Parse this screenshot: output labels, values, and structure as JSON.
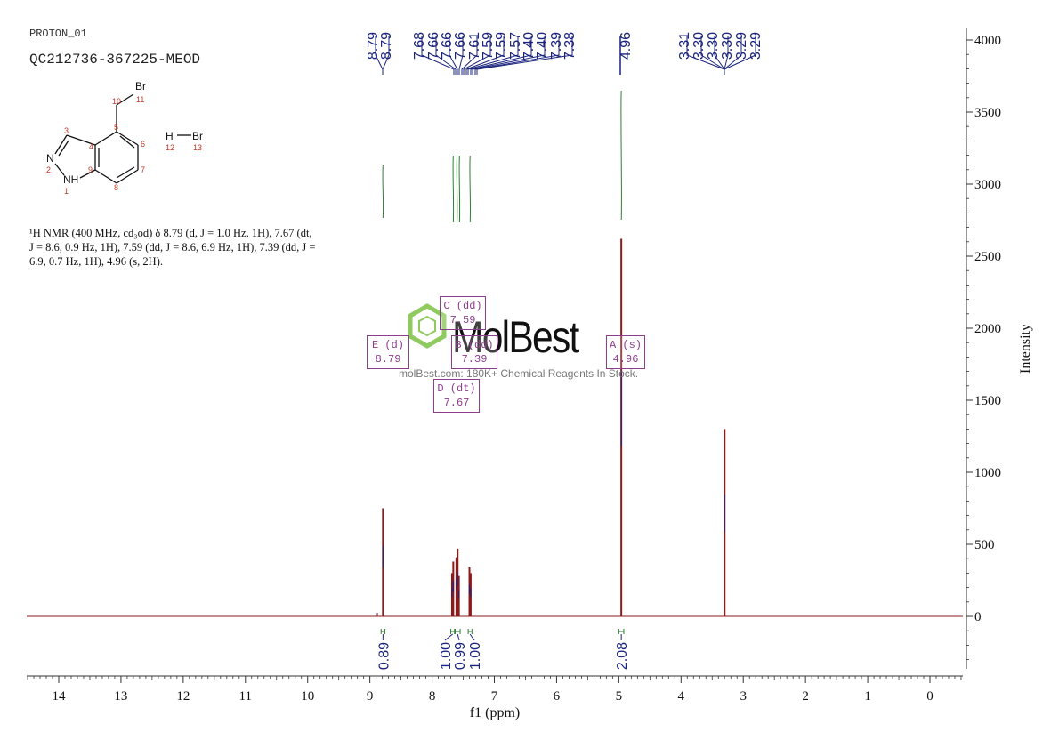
{
  "header": {
    "title": "PROTON_01",
    "sample": "QC212736-367225-MEOD"
  },
  "structure": {
    "atoms": [
      {
        "label": "Br",
        "num": "11"
      },
      {
        "label": "N",
        "num": "2"
      },
      {
        "label": "NH",
        "num": "1"
      },
      {
        "label": "H",
        "num": "12"
      },
      {
        "label": "Br",
        "num": "13"
      }
    ],
    "numbers": [
      "10",
      "3",
      "4",
      "5",
      "6",
      "7",
      "8",
      "9"
    ]
  },
  "nmr_text": {
    "line1": "¹H NMR (400 MHz, cd₃od) δ 8.79 (d, J = 1.0 Hz, 1H), 7.67 (dt,",
    "line2": "J = 8.6, 0.9 Hz, 1H), 7.59 (dd, J = 8.6, 6.9 Hz, 1H), 7.39 (dd, J =",
    "line3": "6.9, 0.7 Hz, 1H), 4.96 (s, 2H)."
  },
  "peak_labels": [
    {
      "id": "E",
      "line1": "E (d)",
      "line2": "8.79"
    },
    {
      "id": "C",
      "line1": "C (dd)",
      "line2": "7.59"
    },
    {
      "id": "B",
      "line1": "B (dd)",
      "line2": "7.39"
    },
    {
      "id": "D",
      "line1": "D (dt)",
      "line2": "7.67"
    },
    {
      "id": "A",
      "line1": "A (s)",
      "line2": "4.96"
    }
  ],
  "watermark": {
    "brand": "MolBest",
    "tagline": "molBest.com: 180K+ Chemical Reagents In Stock."
  },
  "colors": {
    "spectrum": "#8b1a1a",
    "peak_tick": "#1a237e",
    "integral": "#2e7d32",
    "label": "#8e3c8e",
    "watermark": "#7cc142"
  },
  "chart_data": {
    "type": "line",
    "xlabel": "f1 (ppm)",
    "ylabel": "Intensity",
    "xlim": [
      14.5,
      -0.5
    ],
    "ylim": [
      -400,
      4000
    ],
    "xticks": [
      14,
      13,
      12,
      11,
      10,
      9,
      8,
      7,
      6,
      5,
      4,
      3,
      2,
      1,
      0
    ],
    "yticks": [
      0,
      500,
      1000,
      1500,
      2000,
      2500,
      3000,
      3500,
      4000
    ],
    "peak_ppm_labels": [
      "8.79",
      "8.79",
      "7.68",
      "7.66",
      "7.66",
      "7.66",
      "7.61",
      "7.59",
      "7.59",
      "7.57",
      "7.40",
      "7.40",
      "7.39",
      "7.38",
      "4.96",
      "3.31",
      "3.30",
      "3.30",
      "3.30",
      "3.29",
      "3.29"
    ],
    "peaks": [
      {
        "ppm": 8.79,
        "height": 750
      },
      {
        "ppm": 7.68,
        "height": 300
      },
      {
        "ppm": 7.66,
        "height": 380
      },
      {
        "ppm": 7.61,
        "height": 410
      },
      {
        "ppm": 7.59,
        "height": 470
      },
      {
        "ppm": 7.57,
        "height": 280
      },
      {
        "ppm": 7.4,
        "height": 340
      },
      {
        "ppm": 7.38,
        "height": 300
      },
      {
        "ppm": 4.96,
        "height": 2620
      },
      {
        "ppm": 3.3,
        "height": 1300
      }
    ],
    "integrals": [
      {
        "from": 8.82,
        "to": 8.76,
        "value": "0.89"
      },
      {
        "from": 7.7,
        "to": 7.64,
        "value": "1.00"
      },
      {
        "from": 7.63,
        "to": 7.55,
        "value": "0.99"
      },
      {
        "from": 7.42,
        "to": 7.36,
        "value": "1.00"
      },
      {
        "from": 5.0,
        "to": 4.92,
        "value": "2.08"
      }
    ]
  }
}
